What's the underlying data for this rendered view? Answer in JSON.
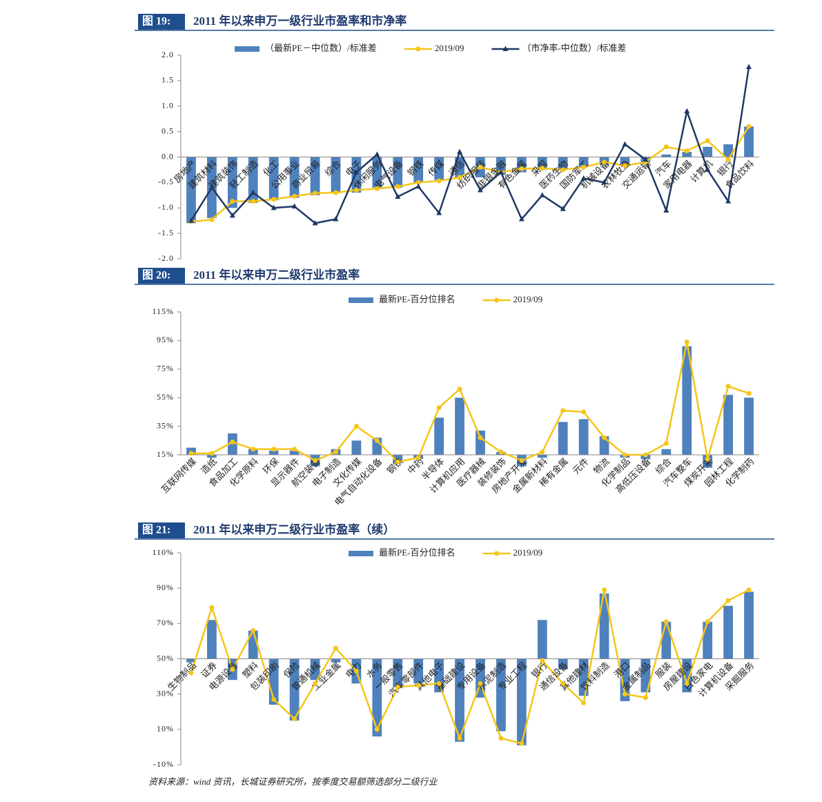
{
  "chart_data": [
    {
      "type": "combo",
      "figure_label": "图 19:",
      "title": "2011 年以来申万一级行业市盈率和市净率",
      "categories": [
        "房地产",
        "建筑材料",
        "建筑装饰",
        "轻工制造",
        "化工",
        "公用事业",
        "商业贸易",
        "综合",
        "电子",
        "休闲服务",
        "电气设备",
        "钢铁",
        "传媒",
        "通信",
        "纺织服装",
        "非银金融",
        "有色金属",
        "采掘",
        "医药生物",
        "国防军工",
        "机械设备",
        "农林牧渔",
        "交通运输",
        "汽车",
        "家用电器",
        "计算机",
        "银行",
        "食品饮料"
      ],
      "series": [
        {
          "name": "（最新PE－中位数）/标准差",
          "type": "bar",
          "color": "#4f81bd",
          "values": [
            -1.3,
            -1.2,
            -1.0,
            -0.9,
            -0.85,
            -0.8,
            -0.75,
            -0.7,
            -0.7,
            -0.6,
            -0.6,
            -0.5,
            -0.45,
            -0.4,
            -0.4,
            -0.35,
            -0.3,
            -0.25,
            -0.25,
            -0.2,
            -0.15,
            -0.15,
            -0.1,
            0.05,
            0.1,
            0.2,
            0.25,
            0.6
          ]
        },
        {
          "name": "2019/09",
          "type": "line",
          "marker": "circle",
          "color": "#f5c518",
          "values": [
            -1.27,
            -1.23,
            -0.87,
            -0.87,
            -0.83,
            -0.77,
            -0.71,
            -0.7,
            -0.65,
            -0.62,
            -0.58,
            -0.5,
            -0.47,
            -0.4,
            -0.2,
            -0.3,
            -0.23,
            -0.22,
            -0.25,
            -0.2,
            -0.1,
            -0.17,
            -0.1,
            0.2,
            0.12,
            0.32,
            -0.05,
            0.6
          ]
        },
        {
          "name": "（市净率-中位数）/标准差",
          "type": "line",
          "marker": "triangle",
          "color": "#1f3864",
          "values": [
            -1.25,
            -0.6,
            -1.15,
            -0.7,
            -1.0,
            -0.97,
            -1.3,
            -1.22,
            -0.3,
            0.05,
            -0.78,
            -0.58,
            -1.1,
            0.1,
            -0.65,
            -0.3,
            -1.22,
            -0.75,
            -1.02,
            -0.42,
            -0.5,
            0.25,
            -0.05,
            -1.05,
            0.9,
            -0.25,
            -0.87,
            1.77
          ]
        }
      ],
      "ylim": [
        -2,
        2
      ],
      "yticks": [
        {
          "value": 2,
          "label": "2.0"
        },
        1.5,
        {
          "value": 1,
          "label": "1.0"
        },
        0.5,
        {
          "value": 0,
          "label": "0.0"
        },
        -0.5,
        {
          "value": -1,
          "label": "-1.0"
        },
        -1.5,
        {
          "value": -2,
          "label": "-2.0"
        }
      ],
      "legend": "top"
    },
    {
      "type": "combo",
      "figure_label": "图 20:",
      "title": "2011 年以来申万二级行业市盈率",
      "categories": [
        "互联网传媒",
        "造纸",
        "食品加工",
        "化学原料",
        "环保",
        "显示器件",
        "航空装备",
        "电子制造",
        "文化传媒",
        "电气自动化设备",
        "钢铁",
        "中药",
        "半导体",
        "计算机应用",
        "医疗器械",
        "装修装饰",
        "房地产开发",
        "金属新材料",
        "稀有金属",
        "元件",
        "物流",
        "化学制品",
        "高低压设备",
        "综合",
        "汽车整车",
        "煤炭开采",
        "园林工程",
        "化学制药"
      ],
      "series": [
        {
          "name": "最新PE-百分位排名",
          "type": "bar",
          "color": "#4f81bd",
          "values": [
            20,
            13,
            30,
            19,
            18,
            18,
            7,
            19,
            25,
            27,
            10,
            12,
            41,
            55,
            32,
            17,
            7,
            13,
            38,
            40,
            28,
            13,
            12,
            19,
            91,
            6,
            57,
            55
          ]
        },
        {
          "name": "2019/09",
          "type": "line",
          "marker": "circle",
          "color": "#f5c518",
          "values": [
            16,
            16,
            24,
            19,
            19,
            19,
            11,
            17,
            35,
            25,
            10,
            13,
            48,
            61,
            27,
            17,
            11,
            17,
            46,
            45,
            27,
            15,
            15,
            23,
            94,
            12,
            63,
            58
          ]
        }
      ],
      "ylim": [
        15,
        115
      ],
      "yticks": [
        {
          "value": 115,
          "label": "115%"
        },
        {
          "value": 95,
          "label": "95%"
        },
        {
          "value": 75,
          "label": "75%"
        },
        {
          "value": 55,
          "label": "55%"
        },
        {
          "value": 35,
          "label": "35%"
        },
        {
          "value": 15,
          "label": "15%"
        }
      ],
      "legend": "top"
    },
    {
      "type": "combo",
      "figure_label": "图 21:",
      "title": "2011 年以来申万二级行业市盈率（续）",
      "categories": [
        "生物制品",
        "证券",
        "电源设备",
        "塑料",
        "包装印刷",
        "保险",
        "普通机械",
        "工业金属",
        "电力",
        "水务",
        "一般零售",
        "汽车零部件",
        "其他电子",
        "基础建设",
        "专用设备",
        "水泥制造",
        "专业工程",
        "银行",
        "通信设备",
        "其他建材",
        "饮料制造",
        "港口",
        "金属制品",
        "服装",
        "房屋建设",
        "白色家电",
        "计算机设备",
        "采掘服务"
      ],
      "series": [
        {
          "name": "最新PE-百分位排名",
          "type": "bar",
          "color": "#4f81bd",
          "values": [
            48,
            72,
            38,
            66,
            24,
            15,
            38,
            48,
            36,
            6,
            34,
            36,
            31,
            3,
            28,
            9,
            1,
            72,
            44,
            29,
            87,
            26,
            31,
            71,
            31,
            71,
            80,
            88
          ]
        },
        {
          "name": "2019/09",
          "type": "line",
          "marker": "circle",
          "color": "#f5c518",
          "values": [
            42,
            79,
            44,
            66,
            27,
            16,
            36,
            56,
            43,
            10,
            34,
            35,
            36,
            5,
            36,
            5,
            2,
            49,
            36,
            25,
            89,
            30,
            28,
            71,
            36,
            71,
            83,
            89
          ]
        }
      ],
      "ylim": [
        -10,
        110
      ],
      "yticks": [
        {
          "value": 110,
          "label": "110%"
        },
        {
          "value": 90,
          "label": "90%"
        },
        {
          "value": 70,
          "label": "70%"
        },
        {
          "value": 50,
          "label": "50%"
        },
        {
          "value": 30,
          "label": "30%"
        },
        {
          "value": 10,
          "label": "10%"
        },
        {
          "value": -10,
          "label": "-10%"
        }
      ],
      "x_axis_crosses": 50,
      "legend": "top"
    }
  ],
  "footnote": "资料来源：wind 资讯，长城证券研究所，按季度交易额筛选部分二级行业"
}
